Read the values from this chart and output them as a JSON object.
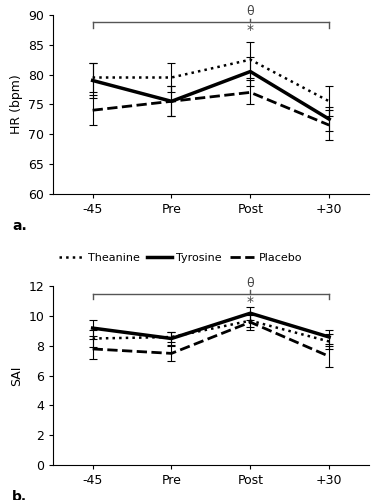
{
  "timepoints": [
    "-45",
    "Pre",
    "Post",
    "+30"
  ],
  "x_positions": [
    0,
    1,
    2,
    3
  ],
  "hr_theanine_mean": [
    79.5,
    79.5,
    82.5,
    75.5
  ],
  "hr_theanine_err": [
    2.5,
    2.5,
    3.0,
    2.5
  ],
  "hr_tyrosine_mean": [
    79.0,
    75.5,
    80.5,
    72.5
  ],
  "hr_tyrosine_err": [
    3.0,
    2.5,
    2.5,
    2.0
  ],
  "hr_placebo_mean": [
    74.0,
    75.5,
    77.0,
    71.5
  ],
  "hr_placebo_err": [
    2.5,
    2.5,
    2.0,
    2.5
  ],
  "hr_ylim": [
    60,
    90
  ],
  "hr_yticks": [
    60,
    65,
    70,
    75,
    80,
    85,
    90
  ],
  "hr_ylabel": "HR (bpm)",
  "sai_theanine_mean": [
    8.5,
    8.6,
    9.7,
    8.3
  ],
  "sai_theanine_err": [
    0.6,
    0.35,
    0.45,
    0.5
  ],
  "sai_tyrosine_mean": [
    9.2,
    8.5,
    10.2,
    8.6
  ],
  "sai_tyrosine_err": [
    0.55,
    0.45,
    0.45,
    0.5
  ],
  "sai_placebo_mean": [
    7.8,
    7.5,
    9.6,
    7.3
  ],
  "sai_placebo_err": [
    0.7,
    0.5,
    0.5,
    0.7
  ],
  "sai_ylim": [
    0,
    12
  ],
  "sai_yticks": [
    0,
    2,
    4,
    6,
    8,
    10,
    12
  ],
  "sai_ylabel": "SAI",
  "theanine_color": "#000000",
  "tyrosine_color": "#000000",
  "placebo_color": "#000000",
  "theanine_ls": "dotted",
  "tyrosine_ls": "solid",
  "placebo_ls": "dashed",
  "theanine_lw": 1.8,
  "tyrosine_lw": 2.5,
  "placebo_lw": 2.0,
  "background_color": "#ffffff",
  "bracket_color": "#555555",
  "annotation_color": "#444444"
}
